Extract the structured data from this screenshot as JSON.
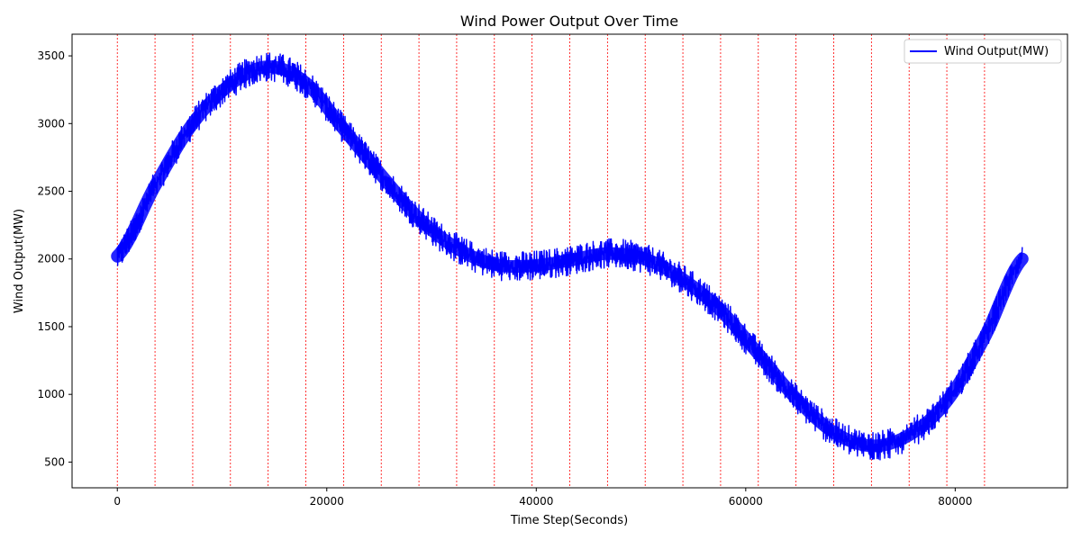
{
  "chart_data": {
    "type": "line",
    "title": "Wind Power Output Over Time",
    "xlabel": "Time Step(Seconds)",
    "ylabel": "Wind Output(MW)",
    "xlim": [
      -4320,
      90720
    ],
    "ylim": [
      310,
      3660
    ],
    "xticks": [
      0,
      20000,
      40000,
      60000,
      80000
    ],
    "yticks": [
      500,
      1000,
      1500,
      2000,
      2500,
      3000,
      3500
    ],
    "grid": false,
    "legend": {
      "placement": "top-right"
    },
    "series": [
      {
        "name": "Wind Output(MW)",
        "color": "#0000ff",
        "noise_band_mw": 130,
        "trend": {
          "x": [
            0,
            3600,
            7200,
            10800,
            14400,
            18000,
            21600,
            25200,
            28800,
            32400,
            36000,
            39600,
            43200,
            46800,
            50400,
            54000,
            57600,
            61200,
            64800,
            68400,
            72000,
            75600,
            79200,
            82800,
            86400
          ],
          "y": [
            2020,
            2540,
            3000,
            3290,
            3420,
            3300,
            2960,
            2620,
            2300,
            2080,
            1960,
            1950,
            1990,
            2040,
            2000,
            1850,
            1620,
            1300,
            970,
            720,
            620,
            700,
            950,
            1420,
            2000
          ]
        }
      }
    ],
    "vlines": {
      "color": "#ff0000",
      "style": "dashed",
      "x": [
        0,
        3600,
        7200,
        10800,
        14400,
        18000,
        21600,
        25200,
        28800,
        32400,
        36000,
        39600,
        43200,
        46800,
        50400,
        54000,
        57600,
        61200,
        64800,
        68400,
        72000,
        75600,
        79200,
        82800
      ]
    }
  }
}
